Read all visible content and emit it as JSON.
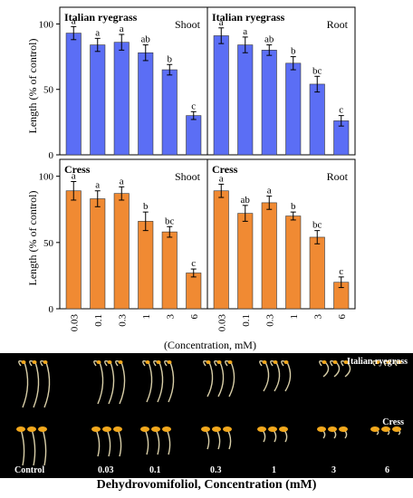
{
  "chart_data": [
    {
      "type": "bar",
      "species": "Italian ryegrass",
      "organ": "Shoot",
      "categories": [
        "0.03",
        "0.1",
        "0.3",
        "1",
        "3",
        "6"
      ],
      "values": [
        93,
        84,
        86,
        78,
        65,
        30
      ],
      "errors": [
        5,
        5,
        6,
        6,
        4,
        3
      ],
      "letters": [
        "a",
        "a",
        "a",
        "ab",
        "b",
        "c"
      ],
      "ylim": [
        0,
        110
      ],
      "yticks": [
        0,
        50,
        100
      ],
      "color": "#5b6ef5"
    },
    {
      "type": "bar",
      "species": "Italian ryegrass",
      "organ": "Root",
      "categories": [
        "0.03",
        "0.1",
        "0.3",
        "1",
        "3",
        "6"
      ],
      "values": [
        91,
        84,
        80,
        70,
        54,
        26
      ],
      "errors": [
        6,
        6,
        4,
        5,
        6,
        4
      ],
      "letters": [
        "a",
        "a",
        "ab",
        "b",
        "bc",
        "c"
      ],
      "ylim": [
        0,
        110
      ],
      "yticks": [
        0,
        50,
        100
      ],
      "color": "#5b6ef5"
    },
    {
      "type": "bar",
      "species": "Cress",
      "organ": "Shoot",
      "categories": [
        "0.03",
        "0.1",
        "0.3",
        "1",
        "3",
        "6"
      ],
      "values": [
        89,
        83,
        87,
        66,
        58,
        27
      ],
      "errors": [
        7,
        6,
        5,
        7,
        4,
        3
      ],
      "letters": [
        "a",
        "a",
        "a",
        "b",
        "bc",
        "c"
      ],
      "ylim": [
        0,
        110
      ],
      "yticks": [
        0,
        50,
        100
      ],
      "color": "#f08a33"
    },
    {
      "type": "bar",
      "species": "Cress",
      "organ": "Root",
      "categories": [
        "0.03",
        "0.1",
        "0.3",
        "1",
        "3",
        "6"
      ],
      "values": [
        89,
        72,
        80,
        70,
        54,
        20
      ],
      "errors": [
        5,
        6,
        5,
        3,
        5,
        4
      ],
      "letters": [
        "a",
        "ab",
        "a",
        "b",
        "bc",
        "c"
      ],
      "ylim": [
        0,
        110
      ],
      "yticks": [
        0,
        50,
        100
      ],
      "color": "#f08a33"
    }
  ],
  "ylabel": "Length (% of control)",
  "xlabel": "(Concentration, mM)",
  "photo": {
    "row1_label": "Italian ryegrass",
    "row2_label": "Cress",
    "labels": [
      "Control",
      "0.03",
      "0.1",
      "0.3",
      "1",
      "3",
      "6"
    ]
  },
  "caption": "Dehydrovomifoliol, Concentration (mM)"
}
